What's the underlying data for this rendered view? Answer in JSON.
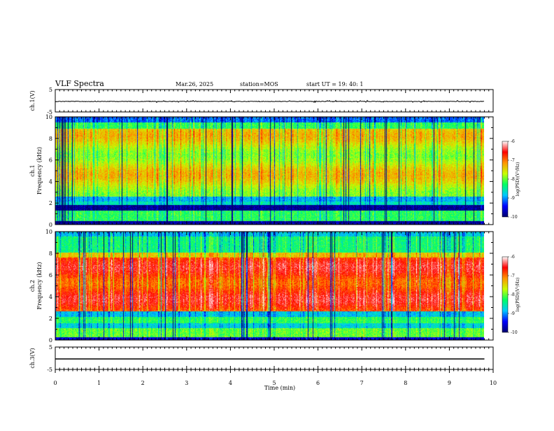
{
  "header": {
    "title": "VLF Spectra",
    "date": "Mar.26, 2025",
    "station": "station=MOS",
    "start": "start  UT  =   19: 40: 1"
  },
  "chart_data": [
    {
      "id": "ch1-waveform",
      "type": "line",
      "ylabel": "ch.1(V)",
      "ylim": [
        -5,
        5
      ],
      "y_ticks": [
        "5",
        "-5"
      ],
      "x_data_end": 9.8,
      "baseline": -0.3,
      "line_color": "#000000"
    },
    {
      "id": "ch1-spectrogram",
      "type": "heatmap",
      "ylabel": "ch.1\nFrequency (kHz)",
      "ylim": [
        0,
        10
      ],
      "y_ticks": [
        "0",
        "2",
        "4",
        "6",
        "8",
        "10"
      ],
      "colorbar": {
        "label": "log(PSD)(V²/Hz)",
        "range": [
          -10,
          -6
        ],
        "ticks": [
          "-6",
          "-7",
          "-8",
          "-9",
          "-10"
        ]
      }
    },
    {
      "id": "ch2-spectrogram",
      "type": "heatmap",
      "ylabel": "ch.2\nFrequency (kHz)",
      "ylim": [
        0,
        10
      ],
      "y_ticks": [
        "0",
        "2",
        "4",
        "6",
        "8",
        "10"
      ],
      "colorbar": {
        "label": "log(PSD)(V²/Hz)",
        "range": [
          -10,
          -6
        ],
        "ticks": [
          "-6",
          "-7",
          "-8",
          "-9",
          "-10"
        ]
      }
    },
    {
      "id": "ch3-waveform",
      "type": "line",
      "ylabel": "ch.3(V)",
      "ylim": [
        -5,
        5
      ],
      "y_ticks": [
        "5",
        "-5"
      ],
      "x_data_end": 9.8,
      "baseline": -0.3,
      "line_color": "#000000"
    }
  ],
  "x_axis": {
    "label": "Time  (min)",
    "range": [
      0,
      10
    ],
    "ticks": [
      "0",
      "1",
      "2",
      "3",
      "4",
      "5",
      "6",
      "7",
      "8",
      "9",
      "10"
    ]
  },
  "colormap": [
    "#00006e",
    "#0000ff",
    "#00c8ff",
    "#00ff64",
    "#c8ff00",
    "#ff9600",
    "#ff0000",
    "#ffffff"
  ]
}
